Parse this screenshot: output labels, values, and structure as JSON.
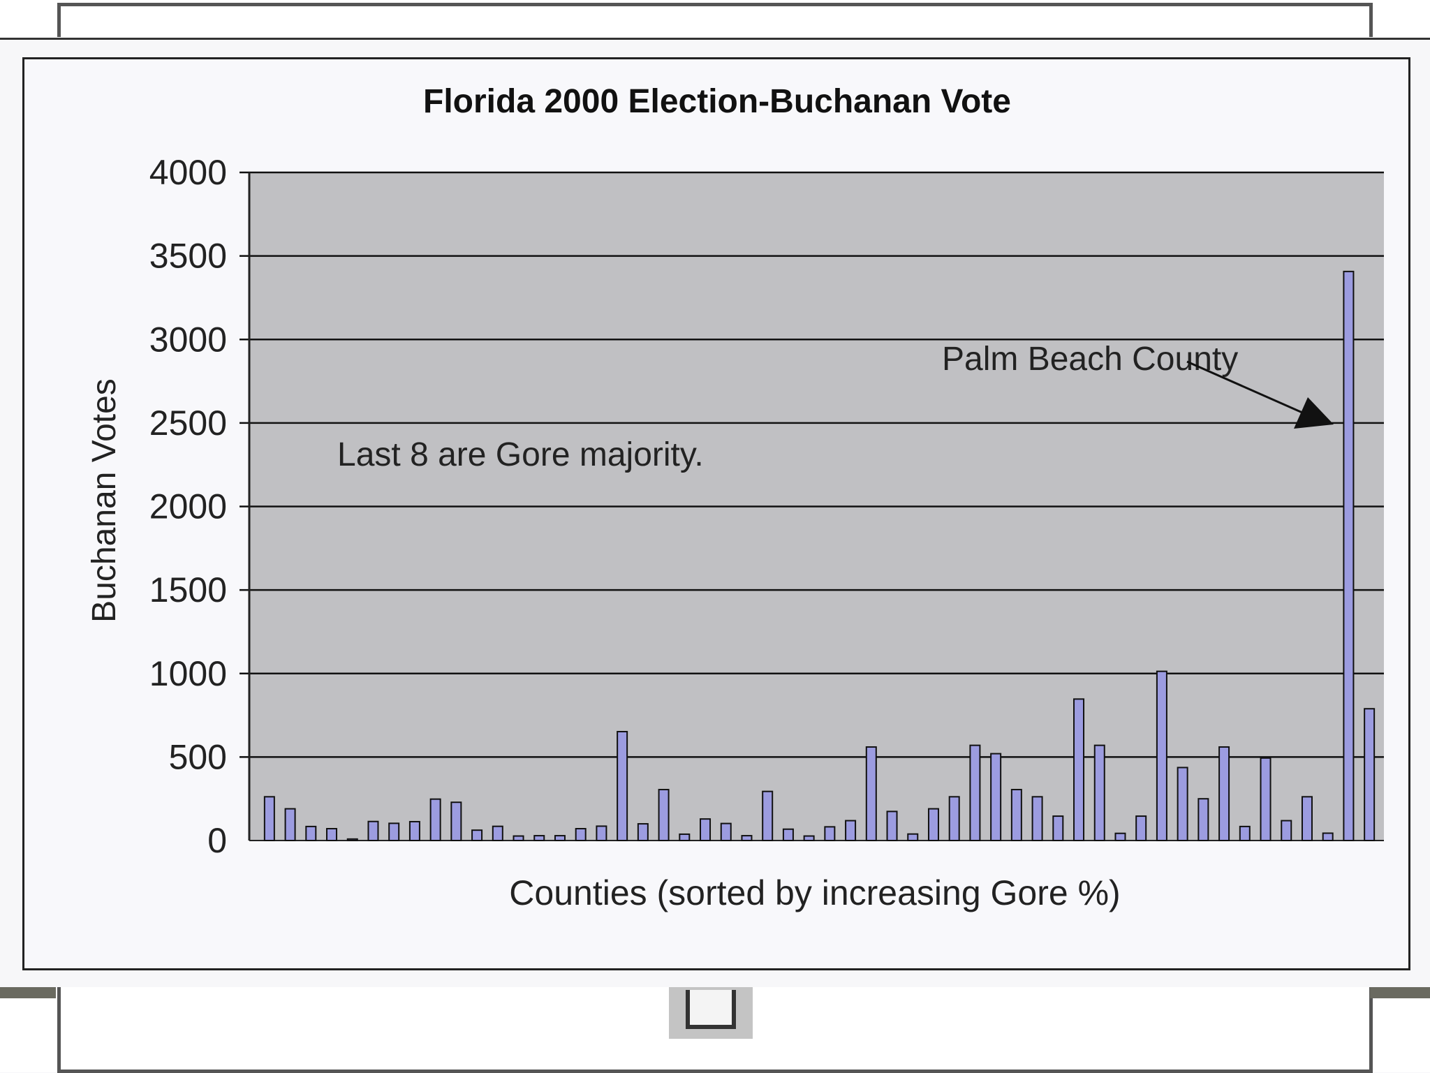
{
  "chart_data": {
    "type": "bar",
    "title": "Florida 2000 Election-Buchanan Vote",
    "xlabel": "Counties (sorted by increasing Gore %)",
    "ylabel": "Buchanan Votes",
    "ylim": [
      0,
      4000
    ],
    "yticks": [
      "0",
      "500",
      "1000",
      "1500",
      "2000",
      "2500",
      "3000",
      "3500",
      "4000"
    ],
    "grid": true,
    "series": [
      {
        "name": "Buchanan Votes",
        "color": "#9c9ce0",
        "values": [
          262,
          190,
          84,
          71,
          9,
          114,
          103,
          113,
          248,
          229,
          62,
          85,
          27,
          29,
          29,
          71,
          86,
          652,
          100,
          305,
          38,
          129,
          102,
          29,
          294,
          68,
          27,
          82,
          119,
          560,
          174,
          39,
          190,
          262,
          570,
          520,
          305,
          262,
          146,
          847,
          570,
          43,
          146,
          1013,
          437,
          250,
          560,
          84,
          494,
          119,
          262,
          44,
          3407,
          789
        ]
      }
    ],
    "annotations": [
      {
        "name": "gore-majority-note",
        "text": "Last 8 are Gore majority."
      },
      {
        "name": "palm-beach-label",
        "text": "Palm Beach County"
      }
    ]
  }
}
